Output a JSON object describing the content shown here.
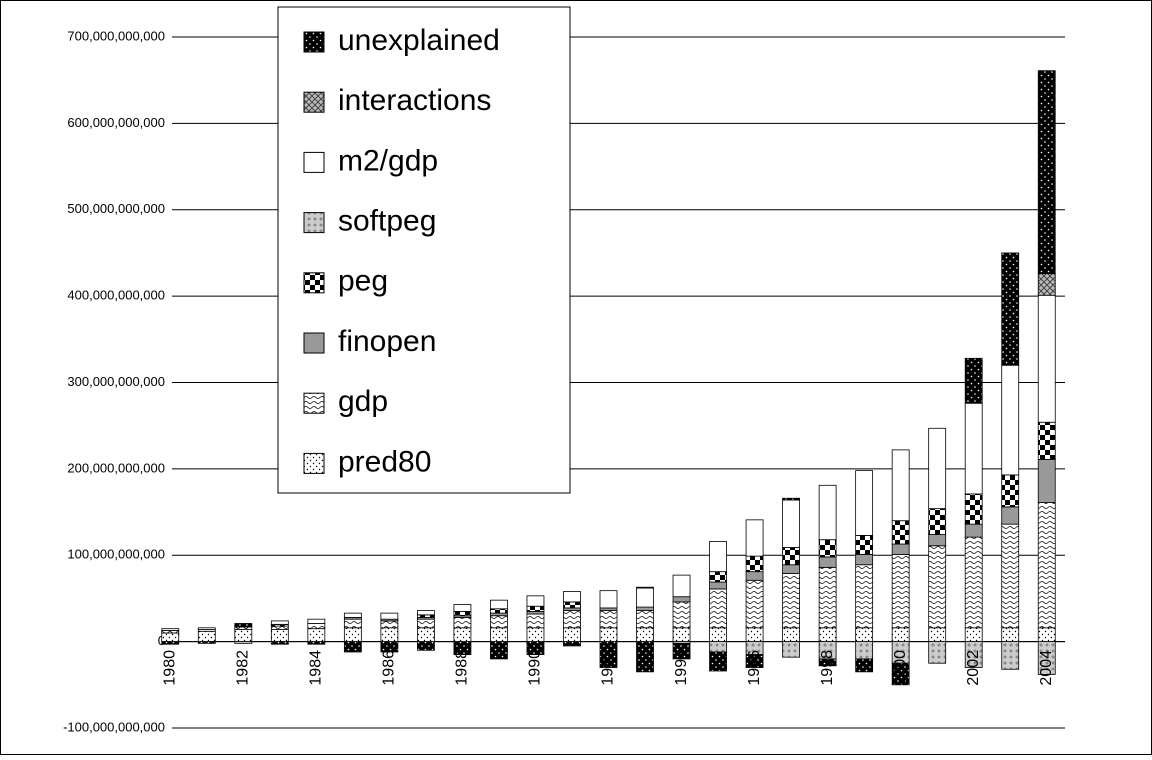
{
  "chart_data": {
    "type": "stacked_bar",
    "categories": [
      "1980",
      null,
      "1982",
      null,
      "1984",
      null,
      "1986",
      null,
      "1988",
      null,
      "1990",
      null,
      "1992",
      null,
      "1994",
      null,
      "1996",
      null,
      "1998",
      null,
      "2000",
      null,
      "2002",
      null,
      "2004"
    ],
    "series": [
      {
        "name": "pred80",
        "color": "#ffffff",
        "values": [
          10000000000.0,
          12000000000.0,
          14000000000.0,
          14000000000.0,
          15000000000.0,
          16000000000.0,
          16000000000.0,
          16000000000.0,
          16000000000.0,
          16000000000.0,
          16000000000.0,
          16000000000.0,
          16000000000.0,
          16000000000.0,
          16000000000.0,
          16000000000.0,
          16000000000.0,
          16000000000.0,
          16000000000.0,
          16000000000.0,
          16000000000.0,
          16000000000.0,
          16000000000.0,
          16000000000.0,
          16000000000.0
        ]
      },
      {
        "name": "gdp",
        "color": "#ffffff",
        "values": [
          3000000000.0,
          2000000000.0,
          3000000000.0,
          4000000000.0,
          6000000000.0,
          10000000000.0,
          8000000000.0,
          10000000000.0,
          12000000000.0,
          14000000000.0,
          16000000000.0,
          20000000000.0,
          20000000000.0,
          20000000000.0,
          30000000000.0,
          45000000000.0,
          55000000000.0,
          63000000000.0,
          70000000000.0,
          73000000000.0,
          85000000000.0,
          95000000000.0,
          105000000000.0,
          120000000000.0,
          145000000000.0
        ]
      },
      {
        "name": "finopen",
        "color": "#999999",
        "values": [
          0,
          0,
          0,
          0,
          0,
          2000000000.0,
          2000000000.0,
          2000000000.0,
          2000000000.0,
          3000000000.0,
          3000000000.0,
          3000000000.0,
          3000000000.0,
          4000000000.0,
          6000000000.0,
          8000000000.0,
          10000000000.0,
          10000000000.0,
          12000000000.0,
          12000000000.0,
          12000000000.0,
          13000000000.0,
          15000000000.0,
          20000000000.0,
          50000000000.0
        ]
      },
      {
        "name": "peg",
        "color": "#000000",
        "values": [
          0,
          0,
          1000000000.0,
          2000000000.0,
          0,
          0,
          0,
          3000000000.0,
          5000000000.0,
          5000000000.0,
          6000000000.0,
          7000000000.0,
          0,
          0,
          0,
          12000000000.0,
          18000000000.0,
          20000000000.0,
          20000000000.0,
          22000000000.0,
          27000000000.0,
          30000000000.0,
          35000000000.0,
          37000000000.0,
          43000000000.0
        ]
      },
      {
        "name": "softpeg",
        "color": "#bbbbbb",
        "values": [
          0,
          0,
          -2000000000.0,
          0,
          0,
          0,
          0,
          0,
          0,
          0,
          0,
          0,
          0,
          0,
          -2000000000.0,
          -12000000000.0,
          -15000000000.0,
          -18000000000.0,
          -20000000000.0,
          -20000000000.0,
          -25000000000.0,
          -25000000000.0,
          -30000000000.0,
          -32000000000.0,
          -38000000000.0
        ]
      },
      {
        "name": "m2/gdp",
        "color": "#ffffff",
        "values": [
          2000000000.0,
          2000000000.0,
          0,
          4000000000.0,
          5000000000.0,
          5000000000.0,
          7000000000.0,
          5000000000.0,
          8000000000.0,
          10000000000.0,
          12000000000.0,
          12000000000.0,
          20000000000.0,
          22000000000.0,
          25000000000.0,
          35000000000.0,
          42000000000.0,
          55000000000.0,
          63000000000.0,
          75000000000.0,
          82000000000.0,
          93000000000.0,
          105000000000.0,
          127000000000.0,
          147000000000.0
        ]
      },
      {
        "name": "interactions",
        "color": "#888888",
        "values": [
          0,
          0,
          0,
          0,
          0,
          0,
          0,
          0,
          0,
          0,
          0,
          0,
          0,
          1000000000.0,
          0,
          0,
          0,
          0,
          0,
          0,
          0,
          0,
          0,
          0,
          25000000000.0
        ]
      },
      {
        "name": "unexplained",
        "color": "#000000",
        "values": [
          -3000000000.0,
          -2000000000.0,
          3000000000.0,
          -3000000000.0,
          -3000000000.0,
          -12000000000.0,
          -12000000000.0,
          -10000000000.0,
          -15000000000.0,
          -20000000000.0,
          -15000000000.0,
          -5000000000.0,
          -30000000000.0,
          -35000000000.0,
          -18000000000.0,
          -22000000000.0,
          -15000000000.0,
          2000000000.0,
          -8000000000.0,
          -15000000000.0,
          -25000000000.0,
          0,
          52000000000.0,
          130000000000.0,
          235000000000.0
        ]
      }
    ],
    "ylim": [
      -100000000000,
      700000000000
    ],
    "yticks": [
      {
        "value": -100000000000,
        "label": "-100,000,000,000"
      },
      0,
      {
        "value": 100000000000,
        "label": "100,000,000,000"
      },
      {
        "value": 200000000000,
        "label": "200,000,000,000"
      },
      {
        "value": 300000000000,
        "label": "300,000,000,000"
      },
      {
        "value": 400000000000,
        "label": "400,000,000,000"
      },
      {
        "value": 500000000000,
        "label": "500,000,000,000"
      },
      {
        "value": 600000000000,
        "label": "600,000,000,000"
      },
      {
        "value": 700000000000,
        "label": "700,000,000,000"
      }
    ],
    "grid": true,
    "legend": "top-left"
  }
}
